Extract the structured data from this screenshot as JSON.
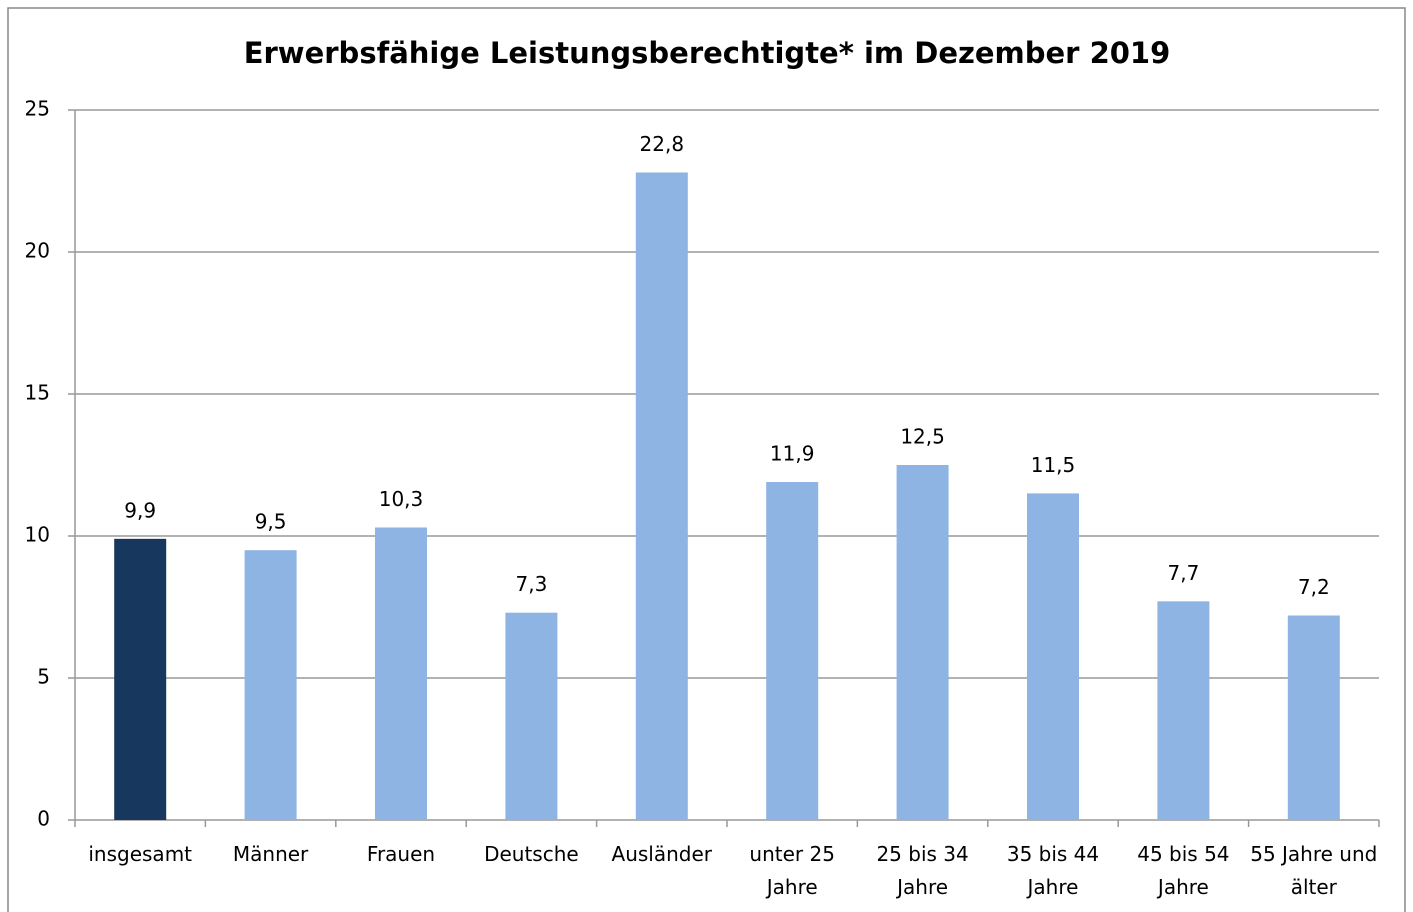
{
  "chart_data": {
    "type": "bar",
    "title": "Erwerbsfähige Leistungsberechtigte* im Dezember 2019",
    "categories": [
      "insgesamt",
      "Männer",
      "Frauen",
      "Deutsche",
      "Ausländer",
      "unter 25 Jahre",
      "25 bis 34 Jahre",
      "35 bis 44 Jahre",
      "45 bis 54 Jahre",
      "55 Jahre und älter"
    ],
    "values": [
      9.9,
      9.5,
      10.3,
      7.3,
      22.8,
      11.9,
      12.5,
      11.5,
      7.7,
      7.2
    ],
    "value_labels": [
      "9,9",
      "9,5",
      "10,3",
      "7,3",
      "22,8",
      "11,9",
      "12,5",
      "11,5",
      "7,7",
      "7,2"
    ],
    "colors": [
      "#17375e",
      "#8eb4e3",
      "#8eb4e3",
      "#8eb4e3",
      "#8eb4e3",
      "#8eb4e3",
      "#8eb4e3",
      "#8eb4e3",
      "#8eb4e3",
      "#8eb4e3"
    ],
    "ylim": [
      0,
      25
    ],
    "yticks": [
      0,
      5,
      10,
      15,
      20,
      25
    ],
    "grid": true
  }
}
